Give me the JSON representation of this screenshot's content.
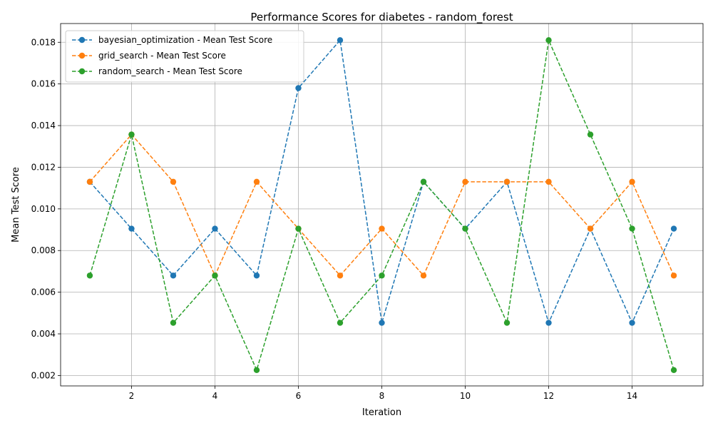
{
  "chart_data": {
    "type": "line",
    "title": "Performance Scores for diabetes - random_forest",
    "xlabel": "Iteration",
    "ylabel": "Mean Test Score",
    "xlim": [
      0.3,
      15.7
    ],
    "ylim": [
      0.0015,
      0.0189
    ],
    "xticks": [
      2,
      4,
      6,
      8,
      10,
      12,
      14
    ],
    "yticks": [
      0.002,
      0.004,
      0.006,
      0.008,
      0.01,
      0.012,
      0.014,
      0.016,
      0.018
    ],
    "ytick_labels": [
      "0.002",
      "0.004",
      "0.006",
      "0.008",
      "0.010",
      "0.012",
      "0.014",
      "0.016",
      "0.018"
    ],
    "grid": true,
    "legend_position": "top-left",
    "x": [
      1,
      2,
      3,
      4,
      5,
      6,
      7,
      8,
      9,
      10,
      11,
      12,
      13,
      14,
      15
    ],
    "series": [
      {
        "name": "bayesian_optimization - Mean Test Score",
        "color": "#1f77b4",
        "values": [
          0.0113,
          0.00905,
          0.0068,
          0.00905,
          0.0068,
          0.0158,
          0.0181,
          0.00453,
          0.0113,
          0.00905,
          0.0113,
          0.00453,
          0.00905,
          0.00453,
          0.00905
        ]
      },
      {
        "name": "grid_search - Mean Test Score",
        "color": "#ff7f0e",
        "values": [
          0.0113,
          0.01357,
          0.0113,
          0.0068,
          0.0113,
          0.00905,
          0.0068,
          0.00905,
          0.0068,
          0.0113,
          0.0113,
          0.0113,
          0.00905,
          0.0113,
          0.0068
        ]
      },
      {
        "name": "random_search - Mean Test Score",
        "color": "#2ca02c",
        "values": [
          0.0068,
          0.01357,
          0.00453,
          0.0068,
          0.00226,
          0.00905,
          0.00453,
          0.0068,
          0.0113,
          0.00905,
          0.00453,
          0.0181,
          0.01357,
          0.00905,
          0.00226
        ]
      }
    ]
  }
}
